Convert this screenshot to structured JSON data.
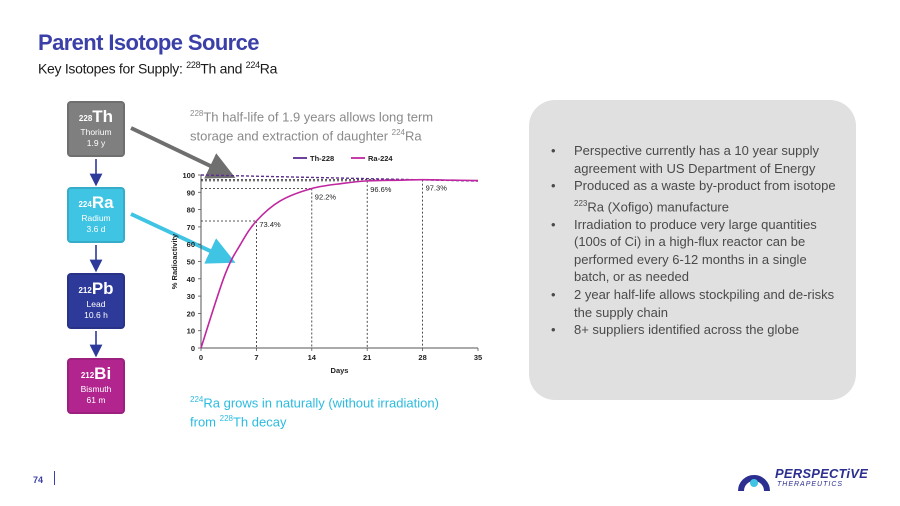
{
  "header": {
    "title": "Parent Isotope Source",
    "subtitle_prefix": "Key Isotopes for Supply: ",
    "subtitle_iso1_mass": "228",
    "subtitle_iso1_symbol": "Th",
    "subtitle_join": " and ",
    "subtitle_iso2_mass": "224",
    "subtitle_iso2_symbol": "Ra"
  },
  "chain": [
    {
      "mass": "228",
      "symbol": "Th",
      "name": "Thorium",
      "half_life": "1.9 y",
      "color": "#7f7f7f"
    },
    {
      "mass": "224",
      "symbol": "Ra",
      "name": "Radium",
      "half_life": "3.6 d",
      "color": "#3fc4e4"
    },
    {
      "mass": "212",
      "symbol": "Pb",
      "name": "Lead",
      "half_life": "10.6 h",
      "color": "#2e3a9a"
    },
    {
      "mass": "212",
      "symbol": "Bi",
      "name": "Bismuth",
      "half_life": "61 m",
      "color": "#b2258f"
    }
  ],
  "notes": {
    "top_mass": "228",
    "top_text_a": "Th half-life of 1.9 years allows long term",
    "top_text_b": "storage and extraction of daughter ",
    "top_mass2": "224",
    "top_text_c": "Ra",
    "bottom_mass": "224",
    "bottom_text_a": "Ra grows in naturally (without irradiation)",
    "bottom_text_b": "from ",
    "bottom_mass2": "228",
    "bottom_text_c": "Th decay"
  },
  "bullets": {
    "b1": "Perspective currently has a 10 year supply agreement with US Department of Energy",
    "b2_a": "Produced as a waste by-product from isotope ",
    "b2_mass": "223",
    "b2_b": "Ra (Xofigo) manufacture",
    "b3": "Irradiation to produce very large quantities (100s of Ci) in a high-flux reactor can be performed every 6-12 months in a single batch, or as needed",
    "b4": "2 year half-life allows stockpiling and de-risks the supply chain",
    "b5": "8+ suppliers identified across the globe"
  },
  "footer": {
    "page": "74",
    "brand": "PERSPECTiVE",
    "brand_sub": "THERAPEUTICS"
  },
  "colors": {
    "accent": "#3b3fa8",
    "th228": "#5b2d8e",
    "ra224": "#c026a0",
    "arrow_gray": "#6f6f6f",
    "arrow_cyan": "#3fc4e4"
  },
  "chart_data": {
    "type": "line",
    "xlabel": "Days",
    "ylabel": "% Radioactivity",
    "xlim": [
      0,
      35
    ],
    "ylim": [
      0,
      100
    ],
    "xticks": [
      0,
      7,
      14,
      21,
      28,
      35
    ],
    "yticks": [
      0,
      10,
      20,
      30,
      40,
      50,
      60,
      70,
      80,
      90,
      100
    ],
    "legend_position": "top",
    "series": [
      {
        "name": "Th-228",
        "x": [
          0,
          35
        ],
        "y": [
          100,
          96.5
        ],
        "color": "#5b2d8e"
      },
      {
        "name": "Ra-224",
        "x": [
          0,
          3,
          5,
          7,
          10,
          14,
          18,
          21,
          25,
          28,
          32,
          35
        ],
        "y": [
          0,
          42,
          60,
          73.4,
          85,
          92.2,
          95.2,
          96.6,
          97.0,
          97.3,
          97.0,
          96.8
        ],
        "color": "#c026a0"
      }
    ],
    "annotations": [
      {
        "x": 7,
        "y": 73.4,
        "label": "73.4%"
      },
      {
        "x": 14,
        "y": 92.2,
        "label": "92.2%"
      },
      {
        "x": 21,
        "y": 96.6,
        "label": "96.6%"
      },
      {
        "x": 28,
        "y": 97.3,
        "label": "97.3%"
      }
    ]
  }
}
